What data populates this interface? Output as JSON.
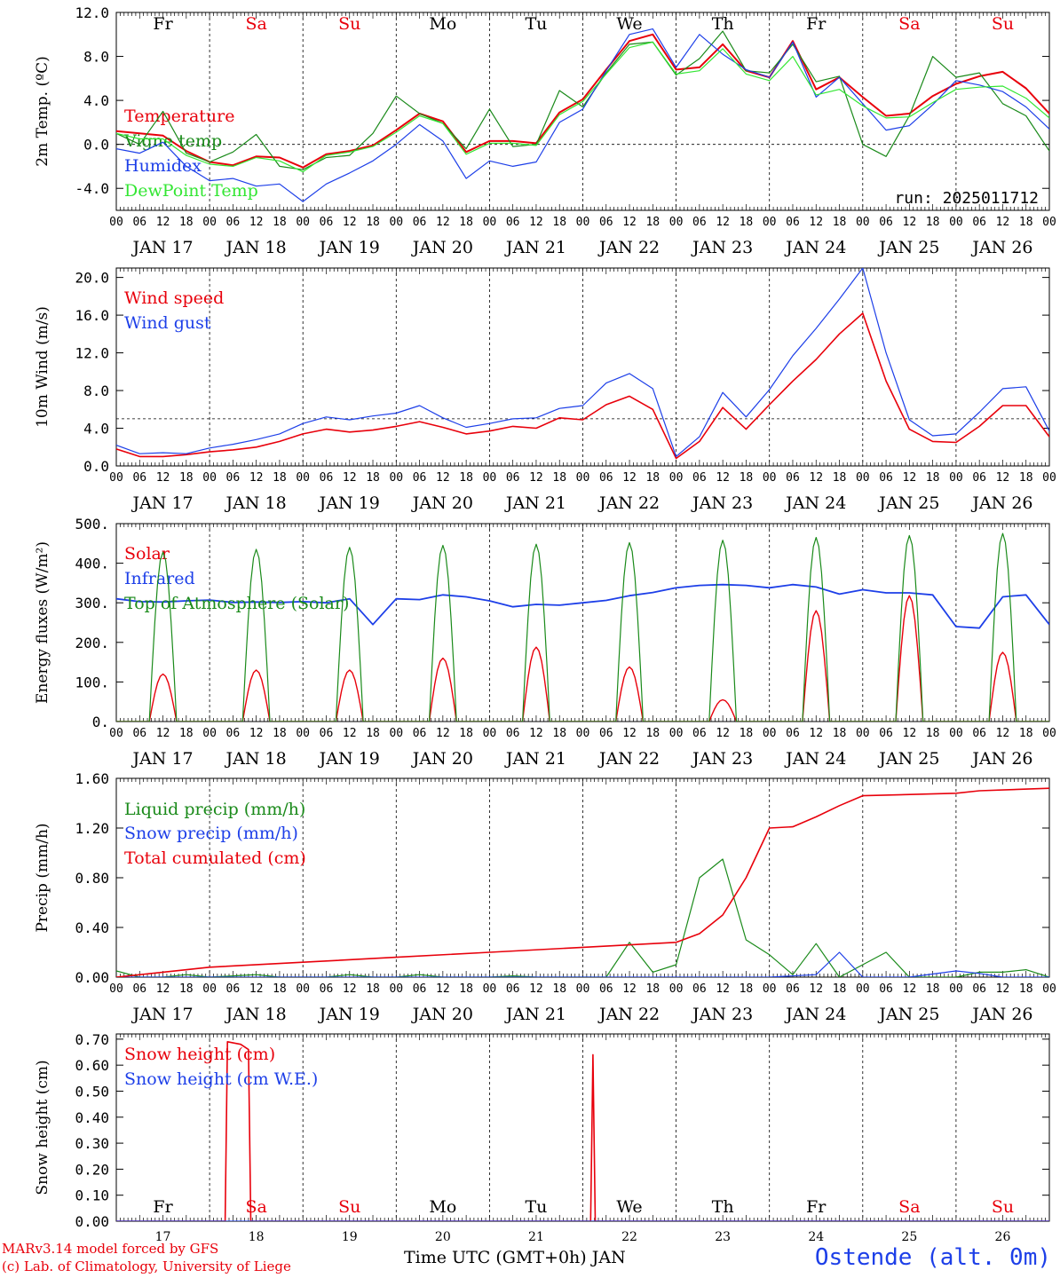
{
  "run_label": "run: 2025011712",
  "footer": {
    "model": "MARv3.14 model forced by GFS",
    "lab": "(c) Lab. of Climatology, University of Liege",
    "station": "Ostende (alt. 0m)",
    "xaxis_title": "Time UTC (GMT+0h) JAN"
  },
  "days": {
    "weekdays": [
      "Fr",
      "Sa",
      "Su",
      "Mo",
      "Tu",
      "We",
      "Th",
      "Fr",
      "Sa",
      "Su"
    ],
    "weekend_flags": [
      false,
      true,
      true,
      false,
      false,
      false,
      false,
      false,
      true,
      true
    ],
    "dates": [
      "JAN 17",
      "JAN 18",
      "JAN 19",
      "JAN 20",
      "JAN 21",
      "JAN 22",
      "JAN 23",
      "JAN 24",
      "JAN 25",
      "JAN 26"
    ],
    "day_numbers": [
      "17",
      "18",
      "19",
      "20",
      "21",
      "22",
      "23",
      "24",
      "25",
      "26"
    ],
    "hour_ticks": [
      "00",
      "06",
      "12",
      "18"
    ],
    "last_tick": "00"
  },
  "colors": {
    "red": "#e8000b",
    "green": "#1a8a1a",
    "blue": "#1d3fe8",
    "lightgreen": "#33e633",
    "weekend": "#e8000b"
  },
  "chart_data": [
    {
      "type": "line",
      "ylabel": "2m Temp. (ºC)",
      "ylim": [
        -6,
        12
      ],
      "yticks": [
        "12.0",
        "8.0",
        "4.0",
        "0.0",
        "-4.0"
      ],
      "ytick_values": [
        12,
        8,
        4,
        0,
        -4
      ],
      "refline": 0,
      "series": [
        {
          "name": "Temperature",
          "color": "#e8000b",
          "width": 2,
          "x": [
            0,
            6,
            12,
            18,
            24,
            30,
            36,
            42,
            48,
            54,
            60,
            66,
            72,
            78,
            84,
            90,
            96,
            102,
            108,
            114,
            120,
            126,
            132,
            138,
            144,
            150,
            156,
            162,
            168,
            174,
            180,
            186,
            192,
            198,
            204,
            210,
            216,
            222,
            228,
            234,
            240
          ],
          "y": [
            1.2,
            1.0,
            0.8,
            -0.6,
            -1.6,
            -1.9,
            -1.1,
            -1.2,
            -2.1,
            -0.9,
            -0.6,
            -0.1,
            1.3,
            2.8,
            2.1,
            -0.7,
            0.3,
            0.3,
            0.1,
            2.9,
            4.1,
            6.8,
            9.4,
            10.0,
            6.8,
            7.0,
            9.1,
            6.7,
            6.1,
            9.4,
            5.0,
            6.1,
            4.3,
            2.6,
            2.8,
            4.4,
            5.5,
            6.2,
            6.6,
            5.1,
            2.8
          ]
        },
        {
          "name": "Vigne temp",
          "color": "#1a8a1a",
          "width": 1.2,
          "x": [
            0,
            6,
            12,
            18,
            24,
            30,
            36,
            42,
            48,
            54,
            60,
            66,
            72,
            78,
            84,
            90,
            96,
            102,
            108,
            114,
            120,
            126,
            132,
            138,
            144,
            150,
            156,
            162,
            168,
            174,
            180,
            186,
            192,
            198,
            204,
            210,
            216,
            222,
            228,
            234,
            240
          ],
          "y": [
            1.0,
            0.0,
            3.0,
            -0.8,
            -1.6,
            -0.7,
            0.9,
            -2.0,
            -2.3,
            -1.2,
            -1.0,
            1.0,
            4.4,
            2.8,
            1.9,
            -0.4,
            3.2,
            -0.2,
            0.0,
            4.9,
            3.4,
            6.5,
            9.1,
            9.3,
            6.3,
            7.8,
            10.3,
            6.7,
            6.5,
            9.1,
            5.7,
            6.2,
            0.0,
            -1.1,
            2.6,
            8.0,
            6.1,
            6.5,
            3.7,
            2.6,
            -0.6
          ]
        },
        {
          "name": "Humidex",
          "color": "#1d3fe8",
          "width": 1.2,
          "x": [
            0,
            6,
            12,
            18,
            24,
            30,
            36,
            42,
            48,
            54,
            60,
            66,
            72,
            78,
            84,
            90,
            96,
            102,
            108,
            114,
            120,
            126,
            132,
            138,
            144,
            150,
            156,
            162,
            168,
            174,
            180,
            186,
            192,
            198,
            204,
            210,
            216,
            222,
            228,
            234,
            240
          ],
          "y": [
            -0.4,
            -0.8,
            0.2,
            -2.0,
            -3.3,
            -3.1,
            -3.8,
            -3.6,
            -5.2,
            -3.6,
            -2.6,
            -1.5,
            0.0,
            1.8,
            0.3,
            -3.1,
            -1.5,
            -2.0,
            -1.6,
            2.0,
            3.2,
            6.7,
            10.0,
            10.5,
            7.0,
            10.0,
            8.2,
            6.8,
            6.1,
            9.3,
            4.3,
            6.1,
            3.7,
            1.3,
            1.7,
            3.6,
            5.8,
            5.4,
            4.8,
            3.4,
            1.4
          ]
        },
        {
          "name": "DewPoint Temp",
          "color": "#33e633",
          "width": 1.2,
          "x": [
            0,
            6,
            12,
            18,
            24,
            30,
            36,
            42,
            48,
            54,
            60,
            66,
            72,
            78,
            84,
            90,
            96,
            102,
            108,
            114,
            120,
            126,
            132,
            138,
            144,
            150,
            156,
            162,
            168,
            174,
            180,
            186,
            192,
            198,
            204,
            210,
            216,
            222,
            228,
            234,
            240
          ],
          "y": [
            1.0,
            0.5,
            0.5,
            -1.0,
            -1.8,
            -2.0,
            -1.2,
            -1.5,
            -2.5,
            -1.0,
            -0.7,
            -0.2,
            1.1,
            2.6,
            1.9,
            -0.9,
            0.1,
            0.1,
            -0.1,
            2.7,
            3.9,
            6.4,
            8.8,
            9.3,
            6.4,
            6.7,
            8.7,
            6.4,
            5.8,
            8.0,
            4.5,
            5.0,
            3.5,
            2.4,
            2.5,
            3.8,
            5.0,
            5.2,
            5.3,
            4.2,
            2.4
          ]
        }
      ]
    },
    {
      "type": "line",
      "ylabel": "10m Wind (m/s)",
      "ylim": [
        0,
        21
      ],
      "yticks": [
        "20.0",
        "16.0",
        "12.0",
        "8.0",
        "4.0",
        "0.0"
      ],
      "ytick_values": [
        20,
        16,
        12,
        8,
        4,
        0
      ],
      "refline": 5,
      "series": [
        {
          "name": "Wind speed",
          "color": "#e8000b",
          "width": 1.6,
          "x": [
            0,
            6,
            12,
            18,
            24,
            30,
            36,
            42,
            48,
            54,
            60,
            66,
            72,
            78,
            84,
            90,
            96,
            102,
            108,
            114,
            120,
            126,
            132,
            138,
            144,
            150,
            156,
            162,
            168,
            174,
            180,
            186,
            192,
            198,
            204,
            210,
            216,
            222,
            228,
            234,
            240
          ],
          "y": [
            1.8,
            1.0,
            1.0,
            1.2,
            1.5,
            1.7,
            2.0,
            2.6,
            3.4,
            3.9,
            3.6,
            3.8,
            4.2,
            4.7,
            4.1,
            3.4,
            3.7,
            4.2,
            4.0,
            5.1,
            4.9,
            6.5,
            7.4,
            6.0,
            0.8,
            2.6,
            6.2,
            3.9,
            6.5,
            9.0,
            11.3,
            14.0,
            16.2,
            9.0,
            3.9,
            2.6,
            2.5,
            4.2,
            6.4,
            6.4,
            3.1
          ]
        },
        {
          "name": "Wind gust",
          "color": "#1d3fe8",
          "width": 1.2,
          "x": [
            0,
            6,
            12,
            18,
            24,
            30,
            36,
            42,
            48,
            54,
            60,
            66,
            72,
            78,
            84,
            90,
            96,
            102,
            108,
            114,
            120,
            126,
            132,
            138,
            144,
            150,
            156,
            162,
            168,
            174,
            180,
            186,
            192,
            198,
            204,
            210,
            216,
            222,
            228,
            234,
            240
          ],
          "y": [
            2.2,
            1.3,
            1.4,
            1.3,
            1.9,
            2.3,
            2.8,
            3.4,
            4.5,
            5.2,
            4.9,
            5.3,
            5.6,
            6.4,
            5.1,
            4.1,
            4.5,
            5.0,
            5.1,
            6.1,
            6.4,
            8.8,
            9.8,
            8.2,
            1.0,
            3.1,
            7.8,
            5.2,
            8.1,
            11.7,
            14.6,
            17.7,
            21.0,
            12.0,
            4.9,
            3.2,
            3.4,
            5.7,
            8.2,
            8.4,
            3.7
          ]
        }
      ]
    },
    {
      "type": "line",
      "ylabel": "Energy fluxes (W/m²)",
      "ylim": [
        0,
        500
      ],
      "yticks": [
        "500.",
        "400.",
        "300.",
        "200.",
        "100.",
        "0."
      ],
      "ytick_values": [
        500,
        400,
        300,
        200,
        100,
        0
      ],
      "series": [
        {
          "name": "Solar",
          "color": "#e8000b",
          "width": 1.4,
          "peaks": [
            120,
            130,
            130,
            160,
            188,
            138,
            55,
            280,
            318,
            175
          ]
        },
        {
          "name": "Infrared",
          "color": "#1d3fe8",
          "width": 1.8,
          "x": [
            0,
            6,
            12,
            18,
            24,
            30,
            36,
            42,
            48,
            54,
            60,
            66,
            72,
            78,
            84,
            90,
            96,
            102,
            108,
            114,
            120,
            126,
            132,
            138,
            144,
            150,
            156,
            162,
            168,
            174,
            180,
            186,
            192,
            198,
            204,
            210,
            216,
            222,
            228,
            234,
            240
          ],
          "y": [
            310,
            303,
            302,
            305,
            307,
            301,
            302,
            301,
            303,
            300,
            310,
            245,
            310,
            308,
            320,
            315,
            305,
            290,
            296,
            294,
            300,
            306,
            318,
            326,
            338,
            344,
            346,
            344,
            338,
            346,
            340,
            322,
            333,
            325,
            325,
            320,
            240,
            236,
            315,
            320,
            245
          ]
        },
        {
          "name": "Top of Atmosphere (Solar)",
          "color": "#1a8a1a",
          "width": 1.2,
          "peaks": [
            428,
            435,
            440,
            445,
            448,
            452,
            458,
            465,
            470,
            475
          ]
        }
      ]
    },
    {
      "type": "line",
      "ylabel": "Precip (mm/h)",
      "ylim": [
        0,
        1.6
      ],
      "yticks": [
        "1.60",
        "1.20",
        "0.80",
        "0.40",
        "0.00"
      ],
      "ytick_values": [
        1.6,
        1.2,
        0.8,
        0.4,
        0
      ],
      "series": [
        {
          "name": "Liquid precip (mm/h)",
          "color": "#1a8a1a",
          "width": 1.2,
          "x": [
            0,
            6,
            12,
            18,
            24,
            30,
            36,
            42,
            48,
            54,
            60,
            66,
            72,
            78,
            84,
            90,
            96,
            102,
            108,
            114,
            120,
            126,
            132,
            138,
            144,
            150,
            156,
            162,
            168,
            174,
            180,
            186,
            192,
            198,
            204,
            210,
            216,
            222,
            228,
            234,
            240
          ],
          "y": [
            0.05,
            0.0,
            0.0,
            0.02,
            0.0,
            0.01,
            0.02,
            0.0,
            0.0,
            0.0,
            0.02,
            0.0,
            0.0,
            0.02,
            0.0,
            0.0,
            0.0,
            0.01,
            0.0,
            0.0,
            0.0,
            0.0,
            0.28,
            0.04,
            0.1,
            0.8,
            0.95,
            0.3,
            0.18,
            0.02,
            0.27,
            0.0,
            0.1,
            0.2,
            0.0,
            0.0,
            0.0,
            0.04,
            0.04,
            0.06,
            0.0
          ]
        },
        {
          "name": "Snow precip (mm/h)",
          "color": "#1d3fe8",
          "width": 1.2,
          "x": [
            0,
            24,
            48,
            72,
            96,
            120,
            144,
            168,
            180,
            186,
            192,
            204,
            216,
            222,
            228,
            234,
            240
          ],
          "y": [
            0.0,
            0.0,
            0.0,
            0.0,
            0.0,
            0.0,
            0.0,
            0.0,
            0.02,
            0.2,
            0.0,
            0.0,
            0.05,
            0.03,
            0.0,
            0.0,
            0.0
          ]
        },
        {
          "name": "Total cumulated (cm)",
          "color": "#e8000b",
          "width": 1.6,
          "x": [
            0,
            12,
            24,
            48,
            72,
            96,
            120,
            144,
            150,
            156,
            162,
            168,
            174,
            180,
            186,
            192,
            216,
            222,
            240
          ],
          "y": [
            0.0,
            0.04,
            0.08,
            0.12,
            0.16,
            0.2,
            0.24,
            0.28,
            0.35,
            0.5,
            0.8,
            1.2,
            1.21,
            1.29,
            1.38,
            1.46,
            1.48,
            1.5,
            1.52
          ]
        }
      ]
    },
    {
      "type": "line",
      "ylabel": "Snow height (cm)",
      "ylim": [
        0,
        0.72
      ],
      "yticks": [
        "0.70",
        "0.60",
        "0.50",
        "0.40",
        "0.30",
        "0.20",
        "0.10",
        "0.00"
      ],
      "ytick_values": [
        0.7,
        0.6,
        0.5,
        0.4,
        0.3,
        0.2,
        0.1,
        0
      ],
      "series": [
        {
          "name": "Snow height (cm)",
          "color": "#e8000b",
          "width": 1.6,
          "x": [
            0,
            28,
            28.6,
            32,
            34,
            34.6,
            50,
            122,
            122.6,
            123.2,
            130,
            240
          ],
          "y": [
            0,
            0,
            0.69,
            0.68,
            0.66,
            0,
            0,
            0,
            0.64,
            0,
            0,
            0
          ]
        },
        {
          "name": "Snow height (cm W.E.)",
          "color": "#1d3fe8",
          "width": 1.2,
          "x": [
            0,
            240
          ],
          "y": [
            0,
            0
          ]
        }
      ]
    }
  ]
}
